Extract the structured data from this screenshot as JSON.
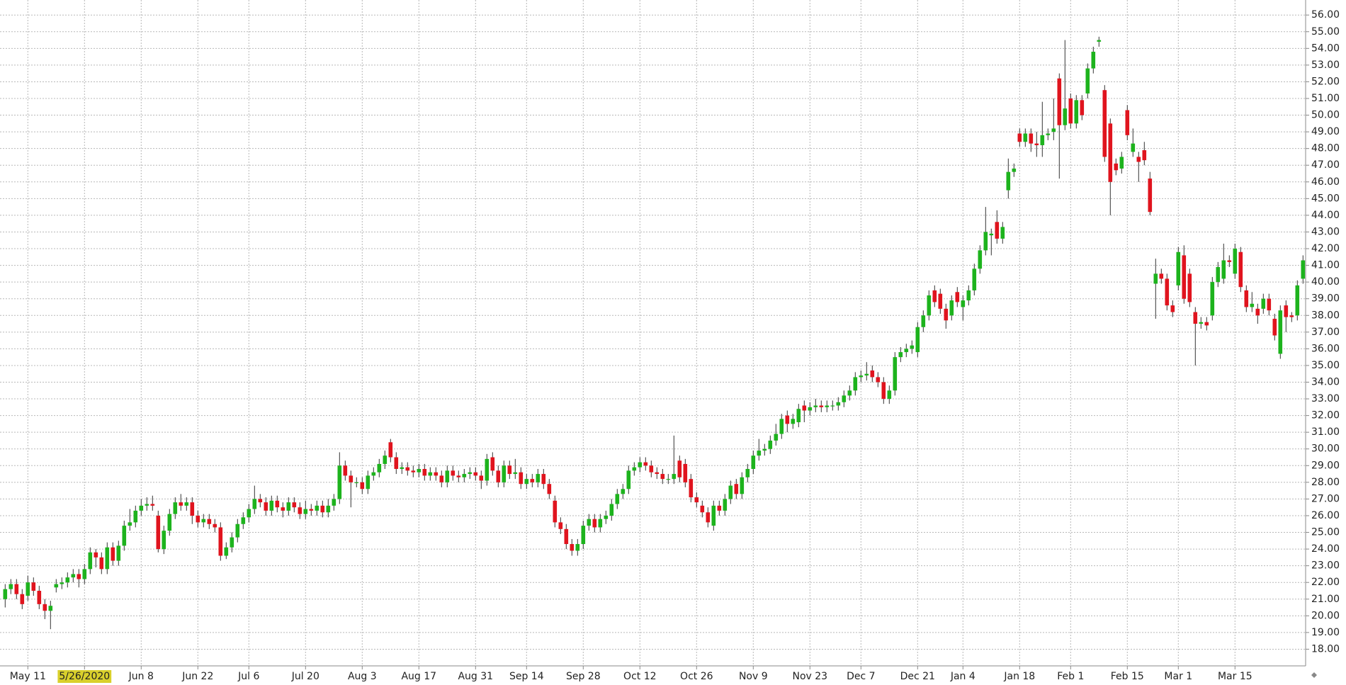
{
  "chart_data": {
    "type": "candlestick",
    "categories": [
      null,
      null,
      null,
      null,
      "May 11",
      null,
      null,
      null,
      null,
      null,
      null,
      null,
      null,
      null,
      "5/26/2020",
      null,
      null,
      null,
      null,
      null,
      null,
      null,
      null,
      null,
      "Jun 8",
      null,
      null,
      null,
      null,
      null,
      null,
      null,
      null,
      null,
      "Jun 22",
      null,
      null,
      null,
      null,
      null,
      null,
      null,
      null,
      "Jul 6",
      null,
      null,
      null,
      null,
      null,
      null,
      null,
      null,
      null,
      "Jul 20",
      null,
      null,
      null,
      null,
      null,
      null,
      null,
      null,
      null,
      "Aug 3",
      null,
      null,
      null,
      null,
      null,
      null,
      null,
      null,
      null,
      "Aug 17",
      null,
      null,
      null,
      null,
      null,
      null,
      null,
      null,
      null,
      "Aug 31",
      null,
      null,
      null,
      null,
      null,
      null,
      null,
      null,
      "Sep 14",
      null,
      null,
      null,
      null,
      null,
      null,
      null,
      null,
      null,
      "Sep 28",
      null,
      null,
      null,
      null,
      null,
      null,
      null,
      null,
      null,
      "Oct 12",
      null,
      null,
      null,
      null,
      null,
      null,
      null,
      null,
      null,
      "Oct 26",
      null,
      null,
      null,
      null,
      null,
      null,
      null,
      null,
      null,
      "Nov 9",
      null,
      null,
      null,
      null,
      null,
      null,
      null,
      null,
      null,
      "Nov 23",
      null,
      null,
      null,
      null,
      null,
      null,
      null,
      null,
      "Dec 7",
      null,
      null,
      null,
      null,
      null,
      null,
      null,
      null,
      null,
      "Dec 21",
      null,
      null,
      null,
      null,
      null,
      null,
      null,
      "Jan 4",
      null,
      null,
      null,
      null,
      null,
      null,
      null,
      null,
      null,
      "Jan 18",
      null,
      null,
      null,
      null,
      null,
      null,
      null,
      null,
      "Feb 1",
      null,
      null,
      null,
      null,
      null,
      null,
      null,
      null,
      null,
      "Feb 15",
      null,
      null,
      null,
      null,
      null,
      null,
      null,
      null,
      "Mar 1",
      null,
      null,
      null,
      null,
      null,
      null,
      null,
      null,
      null,
      "Mar 15",
      null,
      null,
      null,
      null,
      null,
      null,
      null,
      null,
      null,
      null,
      null,
      null
    ],
    "open": [
      21.0,
      21.6,
      21.9,
      21.3,
      21.2,
      22.0,
      21.5,
      20.7,
      20.3,
      21.7,
      21.9,
      22.0,
      22.3,
      22.5,
      22.2,
      22.8,
      23.8,
      23.5,
      22.8,
      24.1,
      23.3,
      24.2,
      25.4,
      25.6,
      26.3,
      26.6,
      26.7,
      26.0,
      24.0,
      25.1,
      26.1,
      26.8,
      26.6,
      26.8,
      26.0,
      25.6,
      25.8,
      25.5,
      25.3,
      23.6,
      24.1,
      24.7,
      25.5,
      25.9,
      26.4,
      27.0,
      26.8,
      26.3,
      26.9,
      26.5,
      26.3,
      26.8,
      26.5,
      26.1,
      26.4,
      26.3,
      26.6,
      26.2,
      26.6,
      27.0,
      29.0,
      28.4,
      28.0,
      28.0,
      27.6,
      28.4,
      28.6,
      29.1,
      30.4,
      29.5,
      28.8,
      28.9,
      28.7,
      28.6,
      28.8,
      28.4,
      28.6,
      28.4,
      28.0,
      28.7,
      28.4,
      28.3,
      28.5,
      28.6,
      28.4,
      28.1,
      29.5,
      28.7,
      28.0,
      29.0,
      28.5,
      28.6,
      27.9,
      28.2,
      28.0,
      28.5,
      27.9,
      26.9,
      25.6,
      25.2,
      24.3,
      23.9,
      24.3,
      25.4,
      25.8,
      25.3,
      25.8,
      26.0,
      26.7,
      27.3,
      27.6,
      28.7,
      28.9,
      29.2,
      29.0,
      28.6,
      28.5,
      28.2,
      28.2,
      29.3,
      29.1,
      28.2,
      27.1,
      26.6,
      26.2,
      25.4,
      26.6,
      26.3,
      27.0,
      27.9,
      27.3,
      28.3,
      28.8,
      29.6,
      29.9,
      30.0,
      30.5,
      30.9,
      32.0,
      31.5,
      31.6,
      32.6,
      32.3,
      32.5,
      32.6,
      32.5,
      32.6,
      32.6,
      32.8,
      33.2,
      33.5,
      34.3,
      34.4,
      34.7,
      34.3,
      34.0,
      33.0,
      33.5,
      35.5,
      35.8,
      36.0,
      35.8,
      37.3,
      38.0,
      39.5,
      39.3,
      38.4,
      38.0,
      39.4,
      38.5,
      38.9,
      39.5,
      40.8,
      41.9,
      42.8,
      43.6,
      42.6,
      45.5,
      46.6,
      48.9,
      48.4,
      48.9,
      48.3,
      48.2,
      48.8,
      49.0,
      52.2,
      49.4,
      51.0,
      49.5,
      50.9,
      51.3,
      52.8,
      54.4,
      51.5,
      49.5,
      47.1,
      46.8,
      50.3,
      47.8,
      47.5,
      47.9,
      46.2,
      39.9,
      40.5,
      40.2,
      38.6,
      39.8,
      41.6,
      40.5,
      38.2,
      37.5,
      37.6,
      38.0,
      40.0,
      40.2,
      41.3,
      40.5,
      41.8,
      39.5,
      38.5,
      38.4,
      38.4,
      39.0,
      37.8,
      35.7,
      38.6,
      38.0,
      38.0,
      40.2
    ],
    "high": [
      21.9,
      22.2,
      22.2,
      21.6,
      22.4,
      22.3,
      21.8,
      21.0,
      20.9,
      22.2,
      22.3,
      22.6,
      22.8,
      22.8,
      23.1,
      24.1,
      24.0,
      23.8,
      24.4,
      24.4,
      24.5,
      25.7,
      26.4,
      26.6,
      27.0,
      27.1,
      27.2,
      26.3,
      25.4,
      26.4,
      27.1,
      27.3,
      27.1,
      27.1,
      26.3,
      26.1,
      26.1,
      25.8,
      25.6,
      24.4,
      25.0,
      25.8,
      26.2,
      26.7,
      27.8,
      27.3,
      27.1,
      27.2,
      27.2,
      26.8,
      27.1,
      27.1,
      26.8,
      26.9,
      26.7,
      26.9,
      26.9,
      27.0,
      27.3,
      29.8,
      29.3,
      28.7,
      28.3,
      28.3,
      28.7,
      28.9,
      29.4,
      29.9,
      30.6,
      29.8,
      29.2,
      29.2,
      29.0,
      29.1,
      29.1,
      28.9,
      28.9,
      28.7,
      29.0,
      29.0,
      28.7,
      28.8,
      28.9,
      28.9,
      28.7,
      29.7,
      29.8,
      29.0,
      29.3,
      29.3,
      29.4,
      28.9,
      28.5,
      28.5,
      28.8,
      28.8,
      28.2,
      27.2,
      25.9,
      25.5,
      24.6,
      24.6,
      25.7,
      26.1,
      26.1,
      26.1,
      26.3,
      27.0,
      27.6,
      27.9,
      29.0,
      29.2,
      29.5,
      29.5,
      29.3,
      28.9,
      28.8,
      28.5,
      30.8,
      29.6,
      29.4,
      28.5,
      27.4,
      26.9,
      26.5,
      26.9,
      26.9,
      27.3,
      28.1,
      28.2,
      28.6,
      29.1,
      29.9,
      30.6,
      30.3,
      30.8,
      31.5,
      32.1,
      32.3,
      32.1,
      32.7,
      32.9,
      32.8,
      33.0,
      32.9,
      32.9,
      32.9,
      33.1,
      33.5,
      33.8,
      34.6,
      34.7,
      35.2,
      35.0,
      34.6,
      34.3,
      33.8,
      35.8,
      36.1,
      36.3,
      36.5,
      37.6,
      38.3,
      39.5,
      39.8,
      39.6,
      38.7,
      39.2,
      39.7,
      39.2,
      39.8,
      41.1,
      42.2,
      44.5,
      43.2,
      44.3,
      43.6,
      47.4,
      47.1,
      49.2,
      49.2,
      49.2,
      49.0,
      50.8,
      49.2,
      51.0,
      52.5,
      54.5,
      51.3,
      51.2,
      51.2,
      53.1,
      54.1,
      54.7,
      51.8,
      49.8,
      47.4,
      47.8,
      50.6,
      49.2,
      47.8,
      48.4,
      46.6,
      41.4,
      40.8,
      40.5,
      38.9,
      42.1,
      42.2,
      40.8,
      38.5,
      37.9,
      37.9,
      40.3,
      41.2,
      42.3,
      41.6,
      42.3,
      42.1,
      39.8,
      39.4,
      38.7,
      39.3,
      39.3,
      38.1,
      38.6,
      38.9,
      38.2,
      40.1,
      41.6
    ],
    "low": [
      20.5,
      21.3,
      21.0,
      20.4,
      20.9,
      21.2,
      20.4,
      19.8,
      19.2,
      21.4,
      21.6,
      21.7,
      22.0,
      21.7,
      21.9,
      22.5,
      22.9,
      22.5,
      22.5,
      23.0,
      23.0,
      23.9,
      25.1,
      25.3,
      26.0,
      26.3,
      26.3,
      23.8,
      23.7,
      24.8,
      25.8,
      26.3,
      26.3,
      25.5,
      25.3,
      25.3,
      25.2,
      25.0,
      23.3,
      23.4,
      23.8,
      24.4,
      25.2,
      25.6,
      26.1,
      26.5,
      26.0,
      26.0,
      26.2,
      25.9,
      26.0,
      26.2,
      25.8,
      25.8,
      26.0,
      26.0,
      25.9,
      25.9,
      26.3,
      26.7,
      28.1,
      26.5,
      27.7,
      27.3,
      27.3,
      28.1,
      28.3,
      28.8,
      29.2,
      28.5,
      28.5,
      28.4,
      28.3,
      28.3,
      28.1,
      28.1,
      28.1,
      27.7,
      27.7,
      28.1,
      28.0,
      28.0,
      28.2,
      28.1,
      27.6,
      27.8,
      28.4,
      27.7,
      27.7,
      28.2,
      28.2,
      27.6,
      27.6,
      27.7,
      27.7,
      27.6,
      27.0,
      25.3,
      24.9,
      24.0,
      23.6,
      23.6,
      24.0,
      25.1,
      25.0,
      25.0,
      25.5,
      25.7,
      26.4,
      27.0,
      27.3,
      28.4,
      28.6,
      28.7,
      28.3,
      28.2,
      27.9,
      27.9,
      27.9,
      28.0,
      27.7,
      26.8,
      26.5,
      25.9,
      25.3,
      25.1,
      26.0,
      26.0,
      26.7,
      27.0,
      27.0,
      28.0,
      28.5,
      29.3,
      29.6,
      29.7,
      30.2,
      30.6,
      31.0,
      31.2,
      31.3,
      31.6,
      32.0,
      32.2,
      32.2,
      32.2,
      32.3,
      32.3,
      32.5,
      32.9,
      33.2,
      34.0,
      34.1,
      34.0,
      33.7,
      32.7,
      32.7,
      33.2,
      35.2,
      35.5,
      35.7,
      35.5,
      37.0,
      37.7,
      38.5,
      38.1,
      37.2,
      37.7,
      38.5,
      37.7,
      38.6,
      39.2,
      40.5,
      41.6,
      41.6,
      42.3,
      42.3,
      45.0,
      46.3,
      48.1,
      48.1,
      47.8,
      47.5,
      47.5,
      48.5,
      48.5,
      46.2,
      49.1,
      49.2,
      49.2,
      49.7,
      51.0,
      52.5,
      54.1,
      47.2,
      44.0,
      46.4,
      46.5,
      48.5,
      47.5,
      46.0,
      47.0,
      44.0,
      37.8,
      39.9,
      38.3,
      37.9,
      39.5,
      38.7,
      38.5,
      35.0,
      37.2,
      37.1,
      37.7,
      39.7,
      39.9,
      40.9,
      40.2,
      39.4,
      38.2,
      38.2,
      37.5,
      38.1,
      38.0,
      36.5,
      35.4,
      37.0,
      37.6,
      37.7,
      39.9
    ],
    "close": [
      21.6,
      21.9,
      21.3,
      20.7,
      22.0,
      21.5,
      20.7,
      20.3,
      20.6,
      21.9,
      22.0,
      22.3,
      22.5,
      22.2,
      22.8,
      23.8,
      23.5,
      22.8,
      24.1,
      23.3,
      24.2,
      25.4,
      25.6,
      26.3,
      26.6,
      26.7,
      26.6,
      24.0,
      25.1,
      26.1,
      26.8,
      26.6,
      26.8,
      26.0,
      25.6,
      25.8,
      25.5,
      25.3,
      23.6,
      24.1,
      24.7,
      25.5,
      25.9,
      26.4,
      27.0,
      26.8,
      26.3,
      26.9,
      26.5,
      26.3,
      26.8,
      26.5,
      26.1,
      26.4,
      26.3,
      26.6,
      26.2,
      26.6,
      27.0,
      29.0,
      28.4,
      28.0,
      28.0,
      27.6,
      28.4,
      28.6,
      29.1,
      29.6,
      29.5,
      28.8,
      28.9,
      28.7,
      28.6,
      28.8,
      28.4,
      28.6,
      28.4,
      28.0,
      28.7,
      28.4,
      28.3,
      28.5,
      28.6,
      28.4,
      28.1,
      29.4,
      28.7,
      28.0,
      29.0,
      28.5,
      28.6,
      27.9,
      28.2,
      28.0,
      28.5,
      27.9,
      27.3,
      25.6,
      25.2,
      24.3,
      23.9,
      24.3,
      25.4,
      25.8,
      25.3,
      25.8,
      26.0,
      26.7,
      27.3,
      27.6,
      28.7,
      28.9,
      29.2,
      29.0,
      28.6,
      28.5,
      28.2,
      28.2,
      28.5,
      28.3,
      28.0,
      27.1,
      26.8,
      26.2,
      25.6,
      26.6,
      26.3,
      27.0,
      27.8,
      27.3,
      28.3,
      28.8,
      29.6,
      29.9,
      30.0,
      30.5,
      30.9,
      31.8,
      31.5,
      31.8,
      32.4,
      32.3,
      32.5,
      32.6,
      32.5,
      32.6,
      32.6,
      32.8,
      33.2,
      33.5,
      34.3,
      34.4,
      34.5,
      34.3,
      34.0,
      33.0,
      33.5,
      35.5,
      35.8,
      36.0,
      36.2,
      37.3,
      38.0,
      39.2,
      38.8,
      38.4,
      37.7,
      38.9,
      38.8,
      38.9,
      39.5,
      40.8,
      41.9,
      43.0,
      42.9,
      42.6,
      43.3,
      46.6,
      46.8,
      48.4,
      48.9,
      48.3,
      48.2,
      48.8,
      48.9,
      49.2,
      49.4,
      50.4,
      49.5,
      50.9,
      50.0,
      52.8,
      53.8,
      54.5,
      47.5,
      46.0,
      46.7,
      47.5,
      48.8,
      48.3,
      47.2,
      47.3,
      44.2,
      40.5,
      40.2,
      38.6,
      38.2,
      41.8,
      39.0,
      38.8,
      37.5,
      37.6,
      37.4,
      40.0,
      40.9,
      41.3,
      41.2,
      42.0,
      39.7,
      38.5,
      38.7,
      38.0,
      39.0,
      38.3,
      36.8,
      38.3,
      37.9,
      37.9,
      39.8,
      41.3
    ],
    "up_color": "#1db31d",
    "down_color": "#e0141e",
    "wick_color": "#333333",
    "highlight_category": "5/26/2020",
    "highlight_color": "#d9d02c",
    "ylim": [
      17.0,
      56.9
    ],
    "yticks": [
      {
        "value": 18,
        "label": "18.00"
      },
      {
        "value": 19,
        "label": "19.00"
      },
      {
        "value": 20,
        "label": "20.00"
      },
      {
        "value": 21,
        "label": "21.00"
      },
      {
        "value": 22,
        "label": "22.00"
      },
      {
        "value": 23,
        "label": "23.00"
      },
      {
        "value": 24,
        "label": "24.00"
      },
      {
        "value": 25,
        "label": "25.00"
      },
      {
        "value": 26,
        "label": "26.00"
      },
      {
        "value": 27,
        "label": "27.00"
      },
      {
        "value": 28,
        "label": "28.00"
      },
      {
        "value": 29,
        "label": "29.00"
      },
      {
        "value": 30,
        "label": "30.00"
      },
      {
        "value": 31,
        "label": "31.00"
      },
      {
        "value": 32,
        "label": "32.00"
      },
      {
        "value": 33,
        "label": "33.00"
      },
      {
        "value": 34,
        "label": "34.00"
      },
      {
        "value": 35,
        "label": "35.00"
      },
      {
        "value": 36,
        "label": "36.00"
      },
      {
        "value": 37,
        "label": "37.00"
      },
      {
        "value": 38,
        "label": "38.00"
      },
      {
        "value": 39,
        "label": "39.00"
      },
      {
        "value": 40,
        "label": "40.00"
      },
      {
        "value": 41,
        "label": "41.00"
      },
      {
        "value": 42,
        "label": "42.00"
      },
      {
        "value": 43,
        "label": "43.00"
      },
      {
        "value": 44,
        "label": "44.00"
      },
      {
        "value": 45,
        "label": "45.00"
      },
      {
        "value": 46,
        "label": "46.00"
      },
      {
        "value": 47,
        "label": "47.00"
      },
      {
        "value": 48,
        "label": "48.00"
      },
      {
        "value": 49,
        "label": "49.00"
      },
      {
        "value": 50,
        "label": "50.00"
      },
      {
        "value": 51,
        "label": "51.00"
      },
      {
        "value": 52,
        "label": "52.00"
      },
      {
        "value": 53,
        "label": "53.00"
      },
      {
        "value": 54,
        "label": "54.00"
      },
      {
        "value": 55,
        "label": "55.00"
      },
      {
        "value": 56,
        "label": "56.00"
      }
    ],
    "grid": true
  }
}
